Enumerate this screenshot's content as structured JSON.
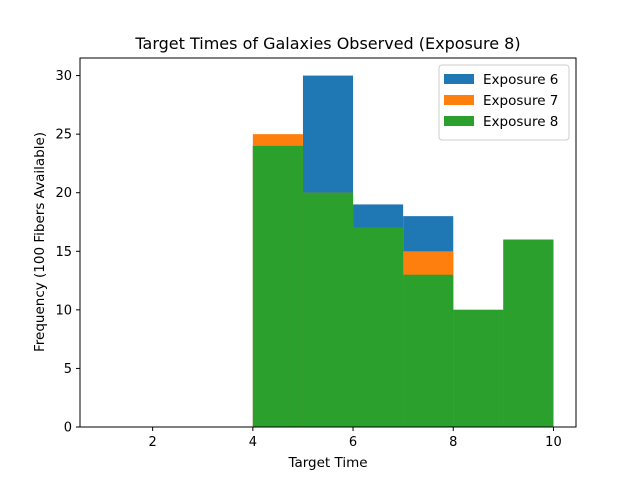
{
  "chart_data": {
    "type": "bar",
    "title": "Target Times of Galaxies Observed (Exposure 8)",
    "xlabel": "Target Time",
    "ylabel": "Frequency (100 Fibers Available)",
    "xlim": [
      0.55,
      10.45
    ],
    "ylim": [
      0,
      31.5
    ],
    "xticks": [
      2,
      4,
      6,
      8,
      10
    ],
    "yticks": [
      0,
      5,
      10,
      15,
      20,
      25,
      30
    ],
    "bin_edges": [
      1,
      2,
      3,
      4,
      5,
      6,
      7,
      8,
      9,
      10
    ],
    "grid": false,
    "legend_position": "top-right",
    "series": [
      {
        "name": "Exposure 6",
        "color": "#1f77b4",
        "values": [
          0,
          0,
          0,
          24,
          30,
          19,
          18,
          10,
          16
        ]
      },
      {
        "name": "Exposure 7",
        "color": "#ff7f0e",
        "values": [
          0,
          0,
          0,
          25,
          20,
          17,
          15,
          10,
          16
        ]
      },
      {
        "name": "Exposure 8",
        "color": "#2ca02c",
        "values": [
          0,
          0,
          0,
          24,
          20,
          17,
          13,
          10,
          16
        ]
      }
    ]
  }
}
